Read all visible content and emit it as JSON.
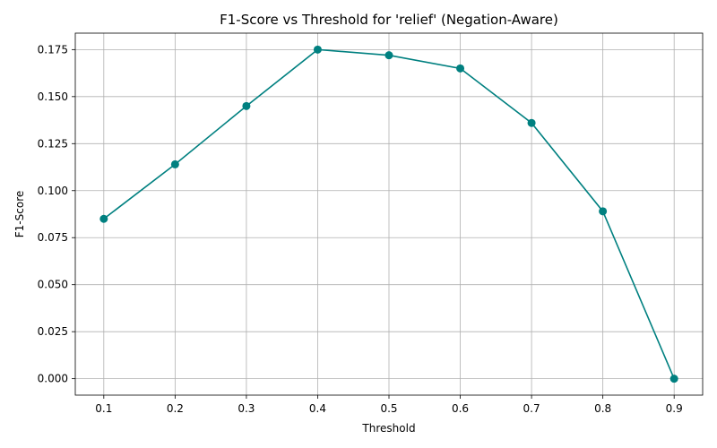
{
  "chart_data": {
    "type": "line",
    "title": "F1-Score vs Threshold for 'relief' (Negation-Aware)",
    "xlabel": "Threshold",
    "ylabel": "F1-Score",
    "x": [
      0.1,
      0.2,
      0.3,
      0.4,
      0.5,
      0.6,
      0.7,
      0.8,
      0.9
    ],
    "series": [
      {
        "values": [
          0.085,
          0.114,
          0.145,
          0.175,
          0.172,
          0.165,
          0.136,
          0.089,
          0.0
        ],
        "color": "#008080",
        "marker": "circle"
      }
    ],
    "xlim": [
      0.06,
      0.94
    ],
    "ylim": [
      -0.00875,
      0.18375
    ],
    "xticks": [
      "0.1",
      "0.2",
      "0.3",
      "0.4",
      "0.5",
      "0.6",
      "0.7",
      "0.8",
      "0.9"
    ],
    "yticks": [
      "0.000",
      "0.025",
      "0.050",
      "0.075",
      "0.100",
      "0.125",
      "0.150",
      "0.175"
    ],
    "grid": true,
    "legend": "none"
  }
}
